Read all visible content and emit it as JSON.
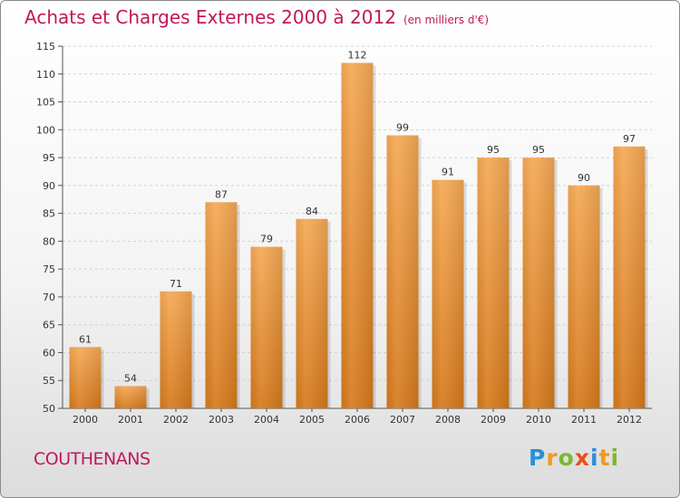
{
  "chart_data": {
    "type": "bar",
    "title": "Achats et Charges Externes 2000 à 2012",
    "subtitle": "(en milliers d'€)",
    "categories": [
      "2000",
      "2001",
      "2002",
      "2003",
      "2004",
      "2005",
      "2006",
      "2007",
      "2008",
      "2009",
      "2010",
      "2011",
      "2012"
    ],
    "values": [
      61,
      54,
      71,
      87,
      79,
      84,
      112,
      99,
      91,
      95,
      95,
      90,
      97
    ],
    "ylim": [
      50,
      115
    ],
    "yticks": [
      50,
      55,
      60,
      65,
      70,
      75,
      80,
      85,
      90,
      95,
      100,
      105,
      110,
      115
    ],
    "grid": true,
    "xlabel": "",
    "ylabel": ""
  },
  "footer": {
    "commune": "COUTHENANS",
    "logo_letters": [
      "P",
      "r",
      "o",
      "x",
      "i",
      "t",
      "i"
    ],
    "logo_colors": [
      "#2b8fd6",
      "#f29a1d",
      "#7cb82f",
      "#e8501e",
      "#2b8fd6",
      "#f29a1d",
      "#7cb82f"
    ]
  },
  "colors": {
    "bar_top": "#f6a955",
    "bar_bottom": "#d67a1c",
    "title": "#c0185a"
  }
}
